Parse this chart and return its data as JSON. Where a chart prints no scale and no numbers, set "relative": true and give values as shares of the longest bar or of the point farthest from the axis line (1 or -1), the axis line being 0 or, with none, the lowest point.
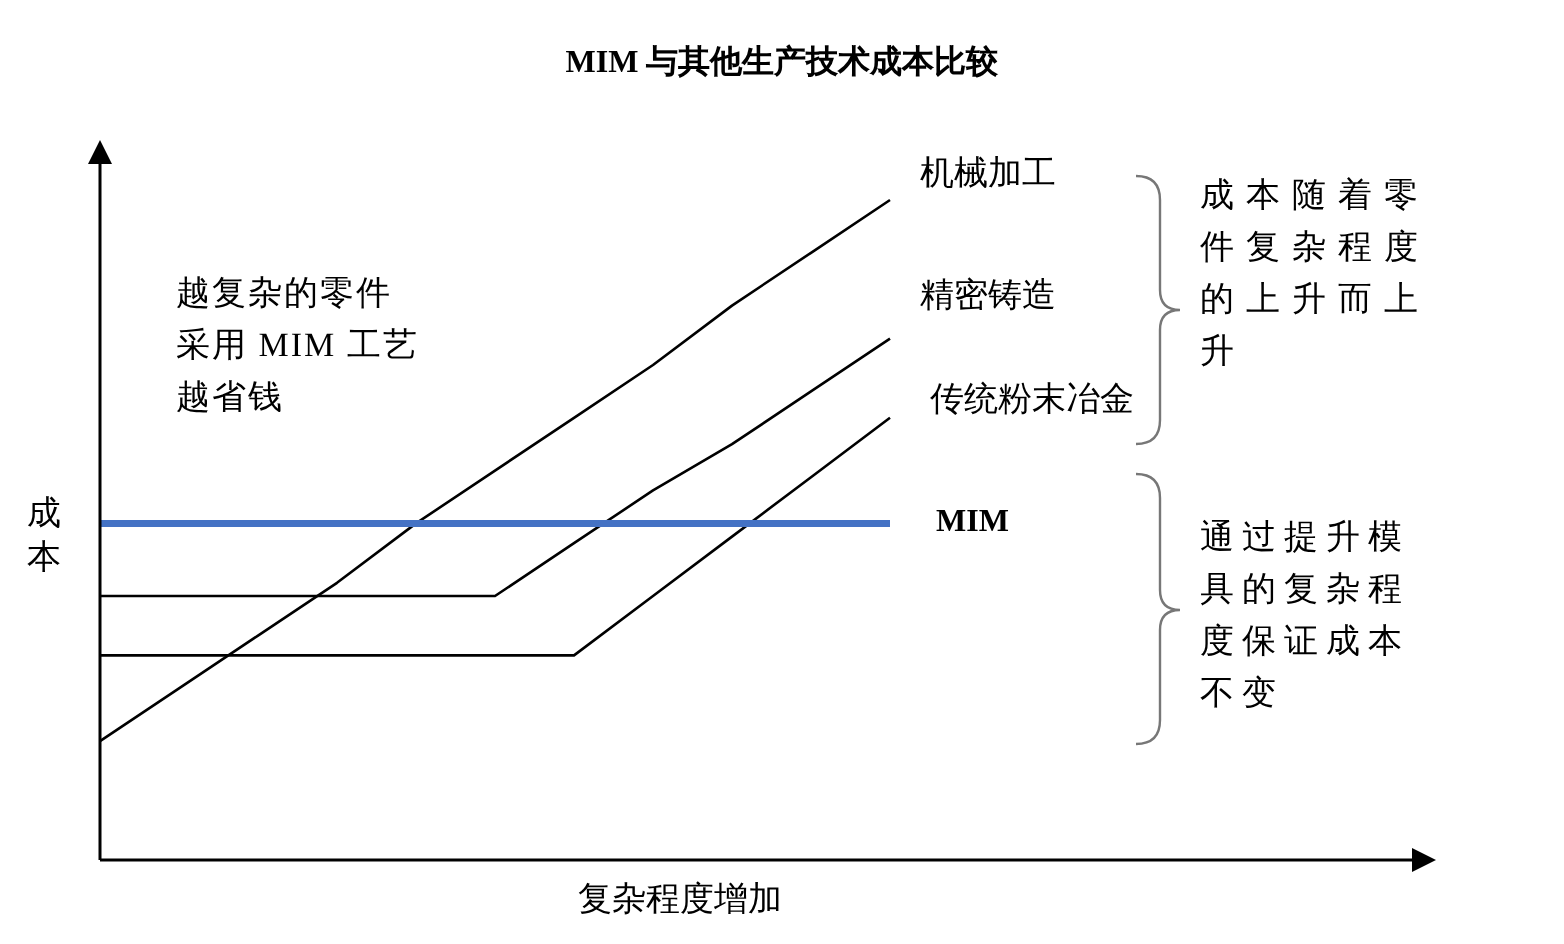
{
  "chart_data": {
    "type": "line",
    "title": "MIM 与其他生产技术成本比较",
    "xlabel": "复杂程度增加",
    "ylabel": "成本",
    "relative": true,
    "categories": [
      null,
      null,
      null,
      null,
      null,
      null,
      null,
      null,
      null,
      null,
      null
    ],
    "series": [
      {
        "name": "机械加工",
        "color": "#000000",
        "values": [
          0.18,
          0.26,
          0.34,
          0.42,
          0.51,
          0.59,
          0.67,
          0.75,
          0.84,
          0.92,
          1.0
        ]
      },
      {
        "name": "精密铸造",
        "color": "#000000",
        "values": [
          0.4,
          0.4,
          0.4,
          0.4,
          0.4,
          0.4,
          0.48,
          0.56,
          0.63,
          0.71,
          0.79
        ]
      },
      {
        "name": "传统粉末冶金",
        "color": "#000000",
        "values": [
          0.31,
          0.31,
          0.31,
          0.31,
          0.31,
          0.31,
          0.31,
          0.4,
          0.49,
          0.58,
          0.67
        ]
      },
      {
        "name": "MIM",
        "color": "#4472c4",
        "values": [
          0.51,
          0.51,
          0.51,
          0.51,
          0.51,
          0.51,
          0.51,
          0.51,
          0.51,
          0.51,
          0.51
        ]
      }
    ],
    "annotations": [
      "越复杂的零件采用 MIM 工艺越省钱",
      "成本随着零件复杂程度的上升而上升",
      "通过提升模具的复杂程度保证成本不变"
    ]
  }
}
